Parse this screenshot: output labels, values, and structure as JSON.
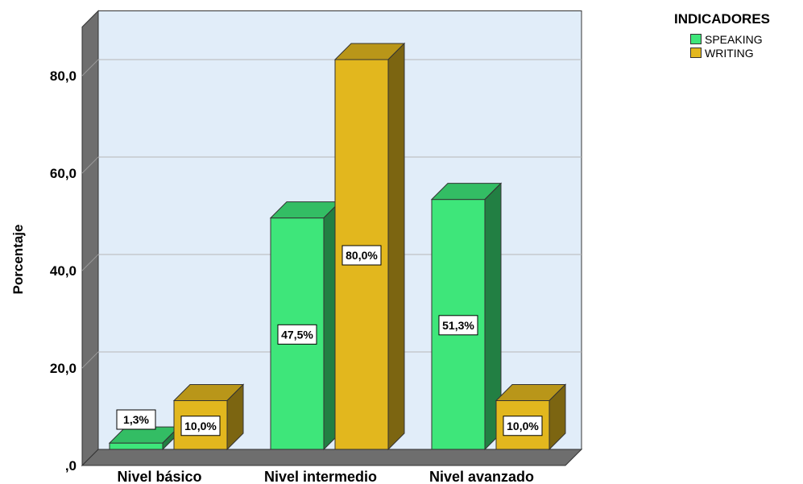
{
  "chart_data": {
    "type": "bar",
    "ylabel": "Porcentaje",
    "ylim": [
      0,
      90
    ],
    "yticks": [
      ",0",
      "20,0",
      "40,0",
      "60,0",
      "80,0"
    ],
    "categories": [
      "Nivel básico",
      "Nivel intermedio",
      "Nivel avanzado"
    ],
    "legend_title": "INDICADORES",
    "legend_position": "top-right",
    "grid": true,
    "series": [
      {
        "name": "SPEAKING",
        "color": "#3ee67a",
        "values": [
          1.3,
          47.5,
          51.3
        ],
        "labels": [
          "1,3%",
          "47,5%",
          "51,3%"
        ]
      },
      {
        "name": "WRITING",
        "color": "#e2b71e",
        "values": [
          10.0,
          80.0,
          10.0
        ],
        "labels": [
          "10,0%",
          "80,0%",
          "10,0%"
        ]
      }
    ]
  }
}
